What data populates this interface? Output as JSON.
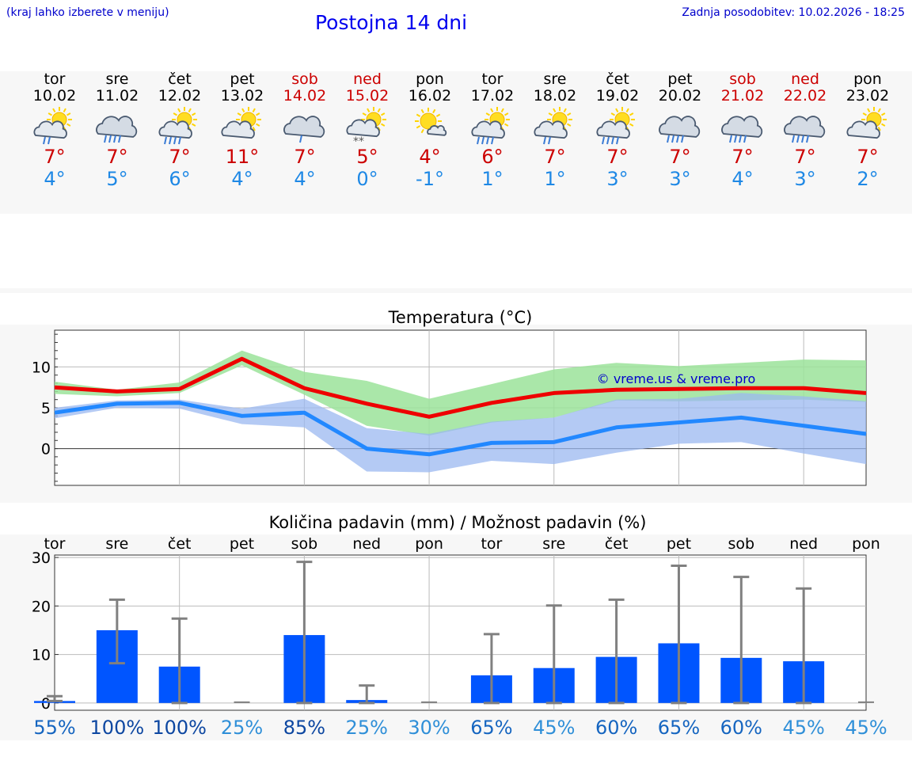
{
  "header": {
    "hint": "(kraj lahko izberete v meniju)",
    "title": "Postojna 14 dni",
    "updated": "Zadnja posodobitev: 10.02.2026 - 18:25"
  },
  "colors": {
    "max": "#ee0000",
    "min": "#2288ff",
    "bar": "#0055ff",
    "weekend": "#cc0000"
  },
  "days": [
    {
      "name": "tor",
      "date": "10.02",
      "max": "7°",
      "min": "4°",
      "icon": "sun-cloud-rain-icon",
      "weekend": false
    },
    {
      "name": "sre",
      "date": "11.02",
      "max": "7°",
      "min": "5°",
      "icon": "cloud-heavy-rain-icon",
      "weekend": false
    },
    {
      "name": "čet",
      "date": "12.02",
      "max": "7°",
      "min": "6°",
      "icon": "sun-cloud-heavy-rain-icon",
      "weekend": false
    },
    {
      "name": "pet",
      "date": "13.02",
      "max": "11°",
      "min": "4°",
      "icon": "sun-cloud-icon",
      "weekend": false
    },
    {
      "name": "sob",
      "date": "14.02",
      "max": "7°",
      "min": "4°",
      "icon": "cloud-rain-icon",
      "weekend": true
    },
    {
      "name": "ned",
      "date": "15.02",
      "max": "5°",
      "min": "0°",
      "icon": "sun-cloud-snow-icon",
      "weekend": true
    },
    {
      "name": "pon",
      "date": "16.02",
      "max": "4°",
      "min": "-1°",
      "icon": "sun-small-cloud-icon",
      "weekend": false
    },
    {
      "name": "tor",
      "date": "17.02",
      "max": "6°",
      "min": "1°",
      "icon": "sun-cloud-heavy-rain-icon",
      "weekend": false
    },
    {
      "name": "sre",
      "date": "18.02",
      "max": "7°",
      "min": "1°",
      "icon": "sun-cloud-rain-icon",
      "weekend": false
    },
    {
      "name": "čet",
      "date": "19.02",
      "max": "7°",
      "min": "3°",
      "icon": "sun-cloud-heavy-rain-icon",
      "weekend": false
    },
    {
      "name": "pet",
      "date": "20.02",
      "max": "7°",
      "min": "3°",
      "icon": "cloud-heavy-rain-icon",
      "weekend": false
    },
    {
      "name": "sob",
      "date": "21.02",
      "max": "7°",
      "min": "4°",
      "icon": "cloud-heavy-rain-icon",
      "weekend": true
    },
    {
      "name": "ned",
      "date": "22.02",
      "max": "7°",
      "min": "3°",
      "icon": "cloud-heavy-rain-icon",
      "weekend": true
    },
    {
      "name": "pon",
      "date": "23.02",
      "max": "7°",
      "min": "2°",
      "icon": "sun-cloud-icon",
      "weekend": false
    }
  ],
  "chart_data": [
    {
      "type": "line",
      "title": "Temperatura (°C)",
      "watermark": "© vreme.us & vreme.pro",
      "x": [
        0,
        1,
        2,
        3,
        4,
        5,
        6,
        7,
        8,
        9,
        10,
        11,
        12,
        13
      ],
      "ylim": [
        -4.5,
        14.5
      ],
      "yticks": [
        0,
        5,
        10
      ],
      "series": [
        {
          "name": "max",
          "values": [
            7.5,
            7.0,
            7.3,
            11.0,
            7.4,
            5.5,
            3.9,
            5.6,
            6.8,
            7.2,
            7.3,
            7.4,
            7.4,
            6.8
          ]
        },
        {
          "name": "min",
          "values": [
            4.4,
            5.5,
            5.6,
            4.0,
            4.4,
            0.0,
            -0.7,
            0.7,
            0.8,
            2.6,
            3.2,
            3.8,
            2.8,
            1.8
          ]
        }
      ],
      "bands": [
        {
          "name": "max-range",
          "low": [
            6.7,
            6.4,
            6.8,
            10.2,
            6.6,
            2.8,
            1.6,
            3.2,
            3.8,
            5.9,
            5.8,
            5.9,
            6.0,
            5.7
          ],
          "high": [
            8.2,
            7.2,
            8.1,
            12.0,
            9.4,
            8.3,
            6.1,
            7.9,
            9.7,
            10.5,
            10.1,
            10.5,
            10.9,
            10.8
          ]
        },
        {
          "name": "min-range",
          "low": [
            3.7,
            5.0,
            4.9,
            3.0,
            2.6,
            -2.8,
            -2.9,
            -1.5,
            -1.9,
            -0.5,
            0.6,
            0.8,
            -0.6,
            -1.9
          ],
          "high": [
            5.0,
            5.9,
            6.0,
            4.9,
            6.1,
            2.5,
            1.8,
            3.3,
            3.8,
            6.0,
            6.1,
            6.8,
            6.4,
            5.8
          ]
        }
      ]
    },
    {
      "type": "bar",
      "title": "Količina padavin (mm) / Možnost padavin (%)",
      "categories": [
        "tor",
        "sre",
        "čet",
        "pet",
        "sob",
        "ned",
        "pon",
        "tor",
        "sre",
        "čet",
        "pet",
        "sob",
        "ned",
        "pon"
      ],
      "values": [
        0.4,
        15.0,
        7.5,
        0,
        14.0,
        0.6,
        0,
        5.7,
        7.2,
        9.5,
        12.3,
        9.3,
        8.6,
        0
      ],
      "err_low": [
        0.4,
        8.2,
        0,
        0,
        0,
        0,
        0,
        0,
        0,
        0,
        0,
        0,
        0,
        0
      ],
      "err_high": [
        1.4,
        21.3,
        17.4,
        0,
        29.1,
        3.6,
        0,
        14.2,
        20.1,
        21.3,
        28.3,
        26.0,
        23.6,
        0
      ],
      "probability": [
        "55%",
        "100%",
        "100%",
        "25%",
        "85%",
        "25%",
        "30%",
        "65%",
        "45%",
        "60%",
        "65%",
        "60%",
        "45%",
        "45%"
      ],
      "ylim": [
        -1.5,
        30.5
      ],
      "yticks": [
        0,
        10,
        20,
        30
      ]
    }
  ]
}
